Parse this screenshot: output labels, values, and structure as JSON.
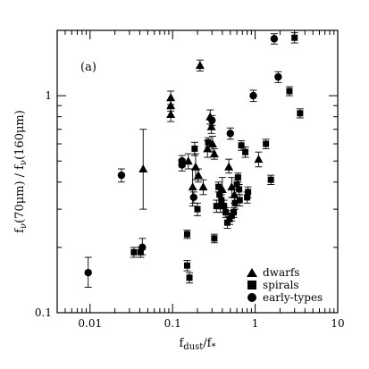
{
  "chart_data": {
    "type": "scatter",
    "panel_label": "(a)",
    "xlabel_main": "f",
    "xlabel_sub1": "dust",
    "xlabel_mid": "/f",
    "xlabel_sub2": "*",
    "ylabel_main": "f",
    "ylabel_sub1": "ν",
    "ylabel_mid1": "(70μm) / f",
    "ylabel_sub2": "ν",
    "ylabel_mid2": "(160μm)",
    "xscale": "log",
    "yscale": "log",
    "xlim": [
      0.004,
      10
    ],
    "ylim": [
      0.1,
      2
    ],
    "xticks": [
      {
        "value": 0.01,
        "label": "0.01"
      },
      {
        "value": 0.1,
        "label": "0.1"
      },
      {
        "value": 1,
        "label": "1"
      },
      {
        "value": 10,
        "label": "10"
      }
    ],
    "yticks": [
      {
        "value": 0.1,
        "label": "0.1"
      },
      {
        "value": 1,
        "label": "1"
      }
    ],
    "legend_position": "bottom-right",
    "series": [
      {
        "name": "dwarfs",
        "marker": "triangle",
        "points": [
          {
            "x": 0.044,
            "y": 0.46,
            "lo": 0.3,
            "hi": 0.7
          },
          {
            "x": 0.095,
            "y": 0.98,
            "lo": 0.91,
            "hi": 1.05
          },
          {
            "x": 0.095,
            "y": 0.82,
            "lo": 0.76,
            "hi": 0.88
          },
          {
            "x": 0.095,
            "y": 0.9,
            "lo": 0.85,
            "hi": 0.96
          },
          {
            "x": 0.155,
            "y": 0.5,
            "lo": 0.46,
            "hi": 0.54
          },
          {
            "x": 0.175,
            "y": 0.38,
            "lo": 0.31,
            "hi": 0.46
          },
          {
            "x": 0.19,
            "y": 0.47,
            "lo": 0.41,
            "hi": 0.54
          },
          {
            "x": 0.205,
            "y": 0.43,
            "lo": 0.4,
            "hi": 0.46
          },
          {
            "x": 0.215,
            "y": 1.38,
            "lo": 1.3,
            "hi": 1.46
          },
          {
            "x": 0.235,
            "y": 0.38,
            "lo": 0.35,
            "hi": 0.41
          },
          {
            "x": 0.265,
            "y": 0.57,
            "lo": 0.52,
            "hi": 0.62
          },
          {
            "x": 0.285,
            "y": 0.8,
            "lo": 0.74,
            "hi": 0.86
          },
          {
            "x": 0.295,
            "y": 0.72,
            "lo": 0.67,
            "hi": 0.77
          },
          {
            "x": 0.305,
            "y": 0.6,
            "lo": 0.55,
            "hi": 0.65
          },
          {
            "x": 0.32,
            "y": 0.54,
            "lo": 0.51,
            "hi": 0.57
          },
          {
            "x": 0.4,
            "y": 0.37,
            "lo": 0.32,
            "hi": 0.42
          },
          {
            "x": 0.48,
            "y": 0.47,
            "lo": 0.44,
            "hi": 0.51
          },
          {
            "x": 0.52,
            "y": 0.38,
            "lo": 0.34,
            "hi": 0.42
          },
          {
            "x": 0.56,
            "y": 0.35,
            "lo": 0.32,
            "hi": 0.38
          },
          {
            "x": 1.1,
            "y": 0.51,
            "lo": 0.47,
            "hi": 0.55
          }
        ]
      },
      {
        "name": "spirals",
        "marker": "square",
        "points": [
          {
            "x": 0.034,
            "y": 0.19,
            "lo": 0.18,
            "hi": 0.2
          },
          {
            "x": 0.041,
            "y": 0.19,
            "lo": 0.18,
            "hi": 0.2
          },
          {
            "x": 0.15,
            "y": 0.23,
            "lo": 0.22,
            "hi": 0.24
          },
          {
            "x": 0.15,
            "y": 0.165,
            "lo": 0.156,
            "hi": 0.174
          },
          {
            "x": 0.16,
            "y": 0.145,
            "lo": 0.137,
            "hi": 0.153
          },
          {
            "x": 0.185,
            "y": 0.57,
            "lo": 0.53,
            "hi": 0.61
          },
          {
            "x": 0.2,
            "y": 0.3,
            "lo": 0.28,
            "hi": 0.32
          },
          {
            "x": 0.27,
            "y": 0.61,
            "lo": 0.58,
            "hi": 0.64
          },
          {
            "x": 0.32,
            "y": 0.22,
            "lo": 0.21,
            "hi": 0.23
          },
          {
            "x": 0.34,
            "y": 0.31,
            "lo": 0.29,
            "hi": 0.33
          },
          {
            "x": 0.36,
            "y": 0.38,
            "lo": 0.36,
            "hi": 0.4
          },
          {
            "x": 0.37,
            "y": 0.35,
            "lo": 0.33,
            "hi": 0.37
          },
          {
            "x": 0.38,
            "y": 0.31,
            "lo": 0.29,
            "hi": 0.33
          },
          {
            "x": 0.39,
            "y": 0.33,
            "lo": 0.31,
            "hi": 0.35
          },
          {
            "x": 0.42,
            "y": 0.31,
            "lo": 0.29,
            "hi": 0.33
          },
          {
            "x": 0.44,
            "y": 0.29,
            "lo": 0.275,
            "hi": 0.305
          },
          {
            "x": 0.46,
            "y": 0.26,
            "lo": 0.245,
            "hi": 0.275
          },
          {
            "x": 0.49,
            "y": 0.27,
            "lo": 0.255,
            "hi": 0.285
          },
          {
            "x": 0.52,
            "y": 0.28,
            "lo": 0.265,
            "hi": 0.295
          },
          {
            "x": 0.55,
            "y": 0.29,
            "lo": 0.275,
            "hi": 0.305
          },
          {
            "x": 0.57,
            "y": 0.32,
            "lo": 0.3,
            "hi": 0.34
          },
          {
            "x": 0.6,
            "y": 0.39,
            "lo": 0.37,
            "hi": 0.41
          },
          {
            "x": 0.62,
            "y": 0.42,
            "lo": 0.4,
            "hi": 0.44
          },
          {
            "x": 0.64,
            "y": 0.37,
            "lo": 0.35,
            "hi": 0.39
          },
          {
            "x": 0.65,
            "y": 0.33,
            "lo": 0.31,
            "hi": 0.35
          },
          {
            "x": 0.68,
            "y": 0.59,
            "lo": 0.56,
            "hi": 0.62
          },
          {
            "x": 0.76,
            "y": 0.55,
            "lo": 0.52,
            "hi": 0.58
          },
          {
            "x": 0.8,
            "y": 0.34,
            "lo": 0.32,
            "hi": 0.36
          },
          {
            "x": 0.82,
            "y": 0.36,
            "lo": 0.34,
            "hi": 0.38
          },
          {
            "x": 1.35,
            "y": 0.6,
            "lo": 0.57,
            "hi": 0.63
          },
          {
            "x": 1.55,
            "y": 0.41,
            "lo": 0.39,
            "hi": 0.43
          },
          {
            "x": 2.6,
            "y": 1.05,
            "lo": 1.0,
            "hi": 1.1
          },
          {
            "x": 3.0,
            "y": 1.85,
            "lo": 1.75,
            "hi": 1.95
          },
          {
            "x": 3.5,
            "y": 0.83,
            "lo": 0.79,
            "hi": 0.87
          }
        ]
      },
      {
        "name": "early-types",
        "marker": "circle",
        "points": [
          {
            "x": 0.0095,
            "y": 0.153,
            "lo": 0.131,
            "hi": 0.18
          },
          {
            "x": 0.024,
            "y": 0.43,
            "lo": 0.4,
            "hi": 0.46
          },
          {
            "x": 0.043,
            "y": 0.2,
            "lo": 0.185,
            "hi": 0.22
          },
          {
            "x": 0.13,
            "y": 0.5,
            "lo": 0.47,
            "hi": 0.53
          },
          {
            "x": 0.13,
            "y": 0.48,
            "lo": 0.45,
            "hi": 0.51
          },
          {
            "x": 0.18,
            "y": 0.34,
            "lo": 0.32,
            "hi": 0.36
          },
          {
            "x": 0.3,
            "y": 0.77,
            "lo": 0.73,
            "hi": 0.81
          },
          {
            "x": 0.5,
            "y": 0.67,
            "lo": 0.63,
            "hi": 0.71
          },
          {
            "x": 0.95,
            "y": 1.0,
            "lo": 0.94,
            "hi": 1.06
          },
          {
            "x": 1.7,
            "y": 1.83,
            "lo": 1.73,
            "hi": 1.93
          },
          {
            "x": 1.9,
            "y": 1.22,
            "lo": 1.15,
            "hi": 1.29
          }
        ]
      }
    ]
  }
}
